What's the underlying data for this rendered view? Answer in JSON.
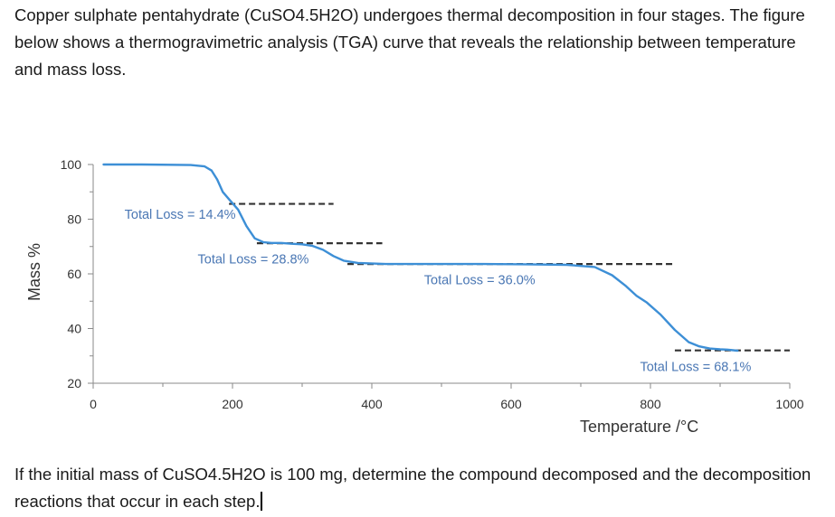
{
  "intro_text": "Copper sulphate pentahydrate (CuSO4.5H2O) undergoes thermal decomposition in four stages. The figure below shows a thermogravimetric analysis (TGA) curve that reveals the relationship between temperature and mass loss.",
  "question_text": "If the initial mass of CuSO4.5H2O is 100 mg, determine the compound decomposed and the decomposition reactions that occur in each step.",
  "chart_data": {
    "type": "line",
    "title": "",
    "xlabel": "Temperature /°C",
    "ylabel": "Mass %",
    "xlim": [
      0,
      1000
    ],
    "ylim": [
      20,
      100
    ],
    "x_ticks": [
      "0",
      "200",
      "400",
      "600",
      "800",
      "1000"
    ],
    "y_ticks": [
      "20",
      "40",
      "60",
      "80",
      "100"
    ],
    "grid": false,
    "line_color": "#3d8fd6",
    "series": [
      {
        "name": "TGA curve",
        "x": [
          15,
          70,
          140,
          160,
          170,
          178,
          186,
          196,
          208,
          220,
          232,
          244,
          256,
          270,
          285,
          300,
          315,
          330,
          345,
          360,
          380,
          420,
          500,
          560,
          620,
          680,
          720,
          745,
          765,
          780,
          795,
          815,
          835,
          855,
          870,
          885,
          900,
          910,
          925
        ],
        "y": [
          100.0,
          100.0,
          99.8,
          99.3,
          97.8,
          94.5,
          90.0,
          87.0,
          83.5,
          77.5,
          73.0,
          71.6,
          71.3,
          71.3,
          71.0,
          70.8,
          70.2,
          68.8,
          66.5,
          64.8,
          64.0,
          63.6,
          63.6,
          63.6,
          63.5,
          63.3,
          62.5,
          59.5,
          55.5,
          52.0,
          49.5,
          45.0,
          39.5,
          35.0,
          33.5,
          32.7,
          32.4,
          32.3,
          31.9
        ]
      }
    ],
    "reference_lines": [
      {
        "y": 85.6,
        "x_from": 195,
        "x_to": 345
      },
      {
        "y": 71.2,
        "x_from": 235,
        "x_to": 415
      },
      {
        "y": 63.6,
        "x_from": 365,
        "x_to": 835
      },
      {
        "y": 32.0,
        "x_from": 835,
        "x_to": 1000
      }
    ],
    "annotations": [
      {
        "text": "Total Loss = 14.4%",
        "x": 45,
        "y": 80.2
      },
      {
        "text": "Total Loss = 28.8%",
        "x": 150,
        "y": 63.8
      },
      {
        "text": "Total Loss = 36.0%",
        "x": 475,
        "y": 56.2
      },
      {
        "text": "Total Loss = 68.1%",
        "x": 785,
        "y": 24.4
      }
    ]
  }
}
